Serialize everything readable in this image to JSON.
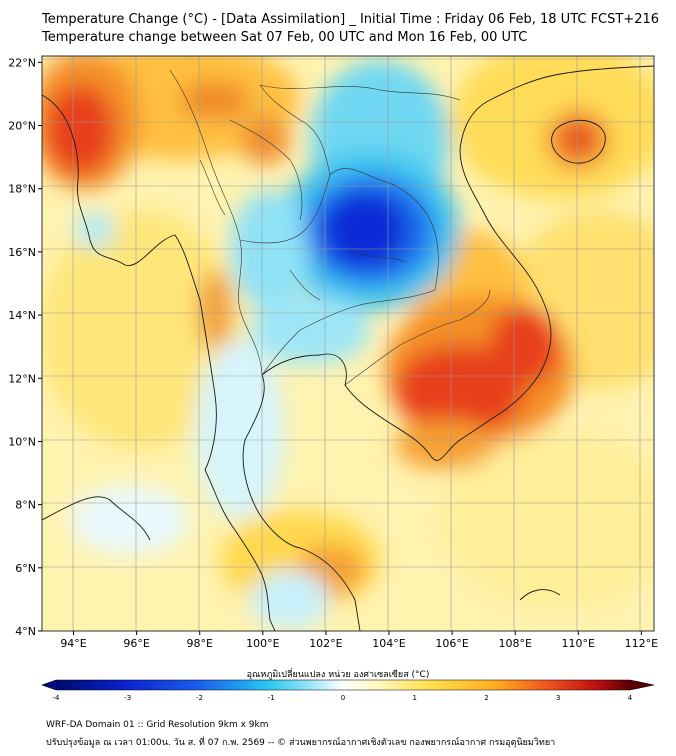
{
  "header": {
    "title_line1": "Temperature Change (°C) - [Data Assimilation] _ Initial Time : Friday 06 Feb, 18 UTC FCST+216",
    "title_line2": "Temperature change between Sat 07 Feb, 00 UTC and Mon 16 Feb, 00 UTC"
  },
  "map": {
    "lon_labels": [
      "94°E",
      "96°E",
      "98°E",
      "100°E",
      "102°E",
      "104°E",
      "106°E",
      "108°E",
      "110°E",
      "112°E"
    ],
    "lat_labels": [
      "22°N",
      "20°N",
      "18°N",
      "16°N",
      "14°N",
      "12°N",
      "10°N",
      "8°N",
      "6°N",
      "4°N"
    ],
    "lon_values": [
      94,
      96,
      98,
      100,
      102,
      104,
      106,
      108,
      110,
      112
    ],
    "lat_values": [
      22,
      20,
      18,
      16,
      14,
      12,
      10,
      8,
      6,
      4
    ],
    "lon_range": [
      93,
      112.4
    ],
    "lat_range": [
      4,
      22.2
    ]
  },
  "colorbar": {
    "label": "อุณหภูมิเปลี่ยนแปลง หน่วย องศาเซลเซียส (°C)",
    "tick_labels": [
      "-4",
      "-3",
      "-2",
      "-1",
      "0",
      "1",
      "2",
      "3",
      "4"
    ],
    "tick_values": [
      -4,
      -3,
      -2,
      -1,
      0,
      1,
      2,
      3,
      4
    ],
    "range": [
      -4,
      4
    ]
  },
  "footer": {
    "line1": "WRF-DA Domain 01 :: Grid Resolution 9km x 9km",
    "line2": "ปรับปรุงข้อมูล ณ เวลา 01:00น. วัน ส. ที่ 07 ก.พ. 2569 -- © ส่วนพยากรณ์อากาศเชิงตัวเลข กองพยากรณ์อากาศ กรมอุตุนิยมวิทยา"
  },
  "colors": {
    "cold_strong": "#0a2bd6",
    "cold": "#29c2ef",
    "neutral": "#ffffff",
    "warm": "#ffd23a",
    "hot": "#e8261a",
    "very_hot": "#7a0008"
  }
}
